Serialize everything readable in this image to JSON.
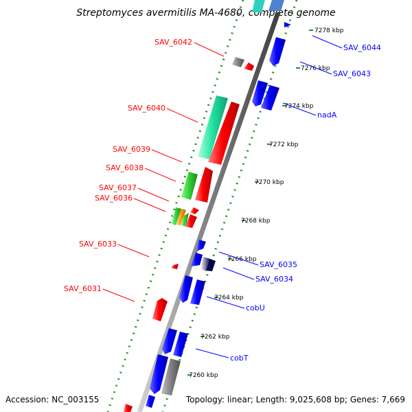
{
  "title": "Streptomyces avermitilis MA-4680, complete genome",
  "footer": {
    "accession": "Accession: NC_003155",
    "topology": "Topology: linear; Length: 9,025,608 bp; Genes: 7,669"
  },
  "colors": {
    "red": "#ff0000",
    "blue": "#0000ff",
    "green": "#228b22",
    "teal": "#20e0a0",
    "gray": "#808080",
    "orange": "#ff9900"
  },
  "ticks": [
    "7278 kbp",
    "7276 kbp",
    "7274 kbp",
    "7272 kbp",
    "7270 kbp",
    "7268 kbp",
    "7266 kbp",
    "7264 kbp",
    "7262 kbp",
    "7260 kbp"
  ],
  "left_labels": [
    "SAV_6042",
    "SAV_6040",
    "SAV_6039",
    "SAV_6038",
    "SAV_6037",
    "SAV_6036",
    "SAV_6033",
    "SAV_6031"
  ],
  "right_labels": [
    "SAV_6044",
    "SAV_6043",
    "nadA",
    "SAV_6035",
    "SAV_6034",
    "cobU",
    "cobT"
  ]
}
